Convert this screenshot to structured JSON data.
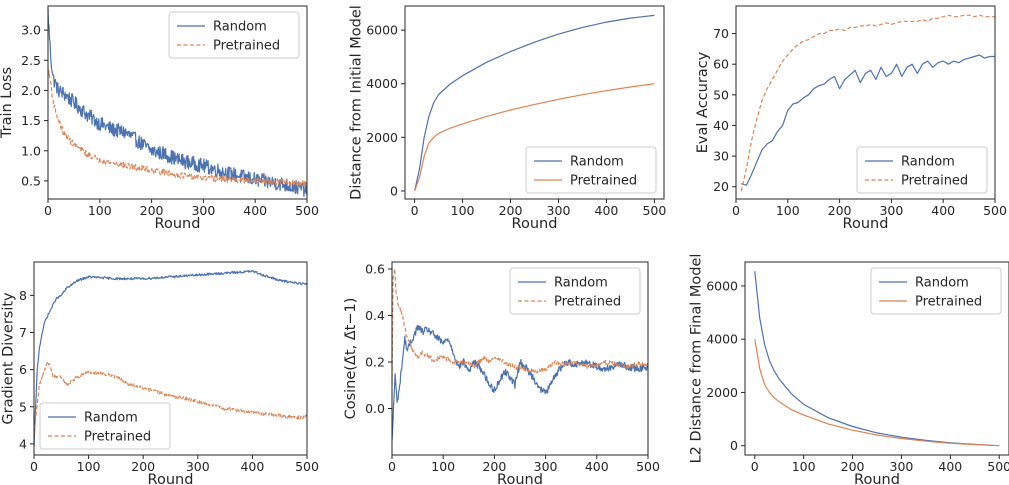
{
  "chart_data": [
    {
      "type": "line",
      "xlabel": "Round",
      "ylabel": "Train Loss",
      "xlim": [
        0,
        500
      ],
      "ylim": [
        0.2,
        3.4
      ],
      "xticks": [
        0,
        100,
        200,
        300,
        400,
        500
      ],
      "yticks": [
        0.5,
        1.0,
        1.5,
        2.0,
        2.5,
        3.0
      ],
      "ytick_format": 1,
      "legend": "top-right",
      "grid": false,
      "series": [
        {
          "name": "Random",
          "style": "solid",
          "color": "#4c72b0",
          "noise": 0.12,
          "x": [
            0,
            5,
            10,
            20,
            30,
            50,
            75,
            100,
            125,
            150,
            175,
            200,
            225,
            250,
            275,
            300,
            350,
            400,
            450,
            500
          ],
          "y": [
            3.3,
            2.6,
            2.2,
            2.0,
            1.95,
            1.8,
            1.6,
            1.45,
            1.35,
            1.3,
            1.15,
            1.0,
            0.95,
            0.85,
            0.8,
            0.75,
            0.62,
            0.52,
            0.45,
            0.35
          ]
        },
        {
          "name": "Pretrained",
          "style": "dashed",
          "color": "#dd8452",
          "noise": 0.05,
          "x": [
            0,
            5,
            10,
            20,
            30,
            50,
            75,
            100,
            150,
            200,
            250,
            300,
            350,
            400,
            450,
            500
          ],
          "y": [
            2.35,
            2.15,
            1.8,
            1.5,
            1.3,
            1.1,
            0.95,
            0.85,
            0.75,
            0.68,
            0.6,
            0.55,
            0.52,
            0.5,
            0.48,
            0.45
          ]
        }
      ]
    },
    {
      "type": "line",
      "xlabel": "Round",
      "ylabel": "Distance from Initial Model",
      "xlim": [
        -20,
        520
      ],
      "ylim": [
        -300,
        6900
      ],
      "xticks": [
        0,
        100,
        200,
        300,
        400,
        500
      ],
      "yticks": [
        0,
        2000,
        4000,
        6000
      ],
      "ytick_format": 0,
      "legend": "bottom-right",
      "grid": false,
      "series": [
        {
          "name": "Random",
          "style": "solid",
          "color": "#4c72b0",
          "noise": 0,
          "x": [
            0,
            10,
            20,
            30,
            40,
            50,
            75,
            100,
            150,
            200,
            250,
            300,
            350,
            400,
            450,
            500
          ],
          "y": [
            0,
            800,
            2000,
            2800,
            3300,
            3600,
            4000,
            4300,
            4800,
            5200,
            5550,
            5850,
            6100,
            6300,
            6450,
            6550
          ]
        },
        {
          "name": "Pretrained",
          "style": "solid",
          "color": "#dd8452",
          "noise": 0,
          "x": [
            0,
            10,
            20,
            30,
            40,
            50,
            75,
            100,
            150,
            200,
            250,
            300,
            350,
            400,
            450,
            500
          ],
          "y": [
            0,
            500,
            1300,
            1800,
            2000,
            2150,
            2350,
            2500,
            2780,
            3020,
            3230,
            3420,
            3590,
            3740,
            3880,
            4000
          ]
        }
      ]
    },
    {
      "type": "line",
      "xlabel": "Round",
      "ylabel": "Eval Accuracy",
      "xlim": [
        0,
        500
      ],
      "ylim": [
        16,
        79
      ],
      "xticks": [
        0,
        100,
        200,
        300,
        400,
        500
      ],
      "yticks": [
        20,
        30,
        40,
        50,
        60,
        70
      ],
      "ytick_format": 0,
      "legend": "bottom-right",
      "grid": false,
      "series": [
        {
          "name": "Random",
          "style": "solid",
          "color": "#4c72b0",
          "noise": 0,
          "x": [
            10,
            20,
            30,
            40,
            50,
            60,
            70,
            80,
            90,
            100,
            110,
            120,
            130,
            140,
            150,
            160,
            170,
            180,
            190,
            200,
            210,
            220,
            230,
            240,
            250,
            260,
            270,
            280,
            290,
            300,
            310,
            320,
            330,
            340,
            350,
            360,
            370,
            380,
            390,
            400,
            410,
            420,
            430,
            440,
            450,
            460,
            470,
            480,
            490,
            500
          ],
          "y": [
            21,
            20.5,
            24,
            28,
            32,
            34,
            35,
            38,
            40,
            45,
            47,
            47.5,
            49,
            50,
            52,
            53,
            53.5,
            55,
            56,
            52,
            55,
            56.5,
            58,
            54,
            57,
            58,
            55,
            59,
            56,
            57,
            60,
            56,
            59,
            60,
            57,
            60,
            61,
            59,
            60.5,
            61,
            60,
            61,
            60.5,
            61.5,
            62,
            62.5,
            63,
            62,
            62.5,
            62.5
          ]
        },
        {
          "name": "Pretrained",
          "style": "dashed",
          "color": "#dd8452",
          "noise": 0,
          "x": [
            10,
            20,
            30,
            40,
            50,
            60,
            70,
            80,
            90,
            100,
            110,
            120,
            130,
            140,
            150,
            160,
            170,
            180,
            190,
            200,
            210,
            220,
            230,
            240,
            250,
            260,
            270,
            280,
            290,
            300,
            310,
            320,
            330,
            340,
            350,
            360,
            370,
            380,
            390,
            400,
            410,
            420,
            430,
            440,
            450,
            460,
            470,
            480,
            490,
            500
          ],
          "y": [
            18.5,
            26,
            35,
            42,
            48,
            52,
            55,
            58,
            61,
            63,
            65,
            66.5,
            67.5,
            68,
            69,
            70,
            70,
            71,
            71,
            71.5,
            71,
            72,
            72,
            72.5,
            72.5,
            73,
            72.5,
            73,
            73.5,
            73,
            73.5,
            74,
            74,
            74,
            74,
            74.5,
            74,
            75,
            75,
            75.5,
            76,
            75.5,
            75.5,
            76,
            76,
            75.5,
            76,
            75.5,
            75.5,
            75.5
          ]
        }
      ]
    },
    {
      "type": "line",
      "xlabel": "Round",
      "ylabel": "Gradient Diversity",
      "xlim": [
        0,
        500
      ],
      "ylim": [
        3.7,
        8.9
      ],
      "xticks": [
        0,
        100,
        200,
        300,
        400,
        500
      ],
      "yticks": [
        4,
        5,
        6,
        7,
        8
      ],
      "ytick_format": 0,
      "legend": "bottom-left",
      "grid": false,
      "series": [
        {
          "name": "Random",
          "style": "solid",
          "color": "#4c72b0",
          "noise": 0.03,
          "x": [
            0,
            3,
            6,
            10,
            15,
            20,
            30,
            40,
            50,
            60,
            80,
            100,
            150,
            200,
            250,
            300,
            350,
            400,
            450,
            500
          ],
          "y": [
            3.9,
            5.0,
            6.0,
            6.6,
            7.0,
            7.3,
            7.6,
            7.9,
            8.0,
            8.2,
            8.4,
            8.5,
            8.45,
            8.45,
            8.5,
            8.55,
            8.6,
            8.65,
            8.4,
            8.3
          ]
        },
        {
          "name": "Pretrained",
          "style": "dashed",
          "color": "#dd8452",
          "noise": 0.05,
          "x": [
            0,
            5,
            10,
            15,
            20,
            25,
            30,
            35,
            40,
            50,
            60,
            80,
            100,
            125,
            150,
            175,
            200,
            250,
            300,
            350,
            400,
            450,
            480,
            500
          ],
          "y": [
            4.2,
            5.0,
            5.6,
            5.8,
            6.0,
            6.2,
            6.1,
            5.8,
            5.8,
            5.8,
            5.6,
            5.8,
            5.95,
            5.9,
            5.8,
            5.6,
            5.5,
            5.3,
            5.15,
            4.95,
            4.85,
            4.75,
            4.7,
            4.75
          ]
        }
      ]
    },
    {
      "type": "line",
      "xlabel": "Round",
      "ylabel": "Cosine(Δ̄t, Δ̄t−1)",
      "xlim": [
        0,
        500
      ],
      "ylim": [
        -0.2,
        0.63
      ],
      "xticks": [
        0,
        100,
        200,
        300,
        400,
        500
      ],
      "yticks": [
        0.0,
        0.2,
        0.4,
        0.6
      ],
      "ytick_format": 1,
      "legend": "top-right",
      "grid": false,
      "series": [
        {
          "name": "Random",
          "style": "solid",
          "color": "#4c72b0",
          "noise": 0.015,
          "x": [
            0,
            3,
            6,
            10,
            15,
            20,
            25,
            30,
            40,
            50,
            60,
            70,
            80,
            90,
            100,
            110,
            120,
            130,
            140,
            150,
            160,
            170,
            180,
            190,
            200,
            210,
            220,
            230,
            240,
            250,
            260,
            270,
            280,
            290,
            300,
            310,
            320,
            340,
            360,
            380,
            400,
            420,
            440,
            460,
            480,
            500
          ],
          "y": [
            -0.15,
            0.0,
            0.15,
            0.02,
            0.1,
            0.2,
            0.3,
            0.25,
            0.3,
            0.35,
            0.33,
            0.34,
            0.32,
            0.3,
            0.28,
            0.3,
            0.24,
            0.18,
            0.2,
            0.16,
            0.2,
            0.18,
            0.15,
            0.1,
            0.08,
            0.12,
            0.16,
            0.14,
            0.1,
            0.2,
            0.18,
            0.15,
            0.12,
            0.08,
            0.07,
            0.1,
            0.15,
            0.2,
            0.19,
            0.2,
            0.18,
            0.17,
            0.19,
            0.18,
            0.17,
            0.18
          ]
        },
        {
          "name": "Pretrained",
          "style": "dashed",
          "color": "#dd8452",
          "noise": 0.01,
          "x": [
            0,
            2,
            5,
            8,
            12,
            16,
            20,
            25,
            30,
            40,
            50,
            60,
            80,
            100,
            120,
            140,
            160,
            170,
            180,
            190,
            200,
            220,
            240,
            260,
            280,
            300,
            320,
            340,
            360,
            380,
            400,
            420,
            440,
            460,
            480,
            500
          ],
          "y": [
            0.1,
            0.55,
            0.6,
            0.5,
            0.45,
            0.42,
            0.4,
            0.35,
            0.3,
            0.25,
            0.22,
            0.24,
            0.21,
            0.22,
            0.2,
            0.2,
            0.18,
            0.2,
            0.22,
            0.2,
            0.22,
            0.2,
            0.18,
            0.17,
            0.16,
            0.17,
            0.2,
            0.19,
            0.2,
            0.18,
            0.19,
            0.2,
            0.19,
            0.18,
            0.19,
            0.19
          ]
        }
      ]
    },
    {
      "type": "line",
      "xlabel": "Round",
      "ylabel": "L2 Distance from Final Model",
      "xlim": [
        -20,
        520
      ],
      "ylim": [
        -350,
        6900
      ],
      "xticks": [
        0,
        100,
        200,
        300,
        400,
        500
      ],
      "yticks": [
        0,
        2000,
        4000,
        6000
      ],
      "ytick_format": 0,
      "legend": "top-right",
      "grid": false,
      "series": [
        {
          "name": "Random",
          "style": "solid",
          "color": "#4c72b0",
          "noise": 0,
          "x": [
            0,
            10,
            20,
            30,
            40,
            50,
            75,
            100,
            150,
            200,
            250,
            300,
            350,
            400,
            450,
            500
          ],
          "y": [
            6550,
            4800,
            3800,
            3200,
            2800,
            2500,
            1950,
            1550,
            1050,
            720,
            480,
            320,
            200,
            110,
            50,
            0
          ]
        },
        {
          "name": "Pretrained",
          "style": "solid",
          "color": "#dd8452",
          "noise": 0,
          "x": [
            0,
            10,
            20,
            30,
            40,
            50,
            75,
            100,
            150,
            200,
            250,
            300,
            350,
            400,
            450,
            500
          ],
          "y": [
            4000,
            2900,
            2300,
            2000,
            1800,
            1650,
            1350,
            1150,
            820,
            580,
            400,
            270,
            170,
            90,
            40,
            0
          ]
        }
      ]
    }
  ]
}
